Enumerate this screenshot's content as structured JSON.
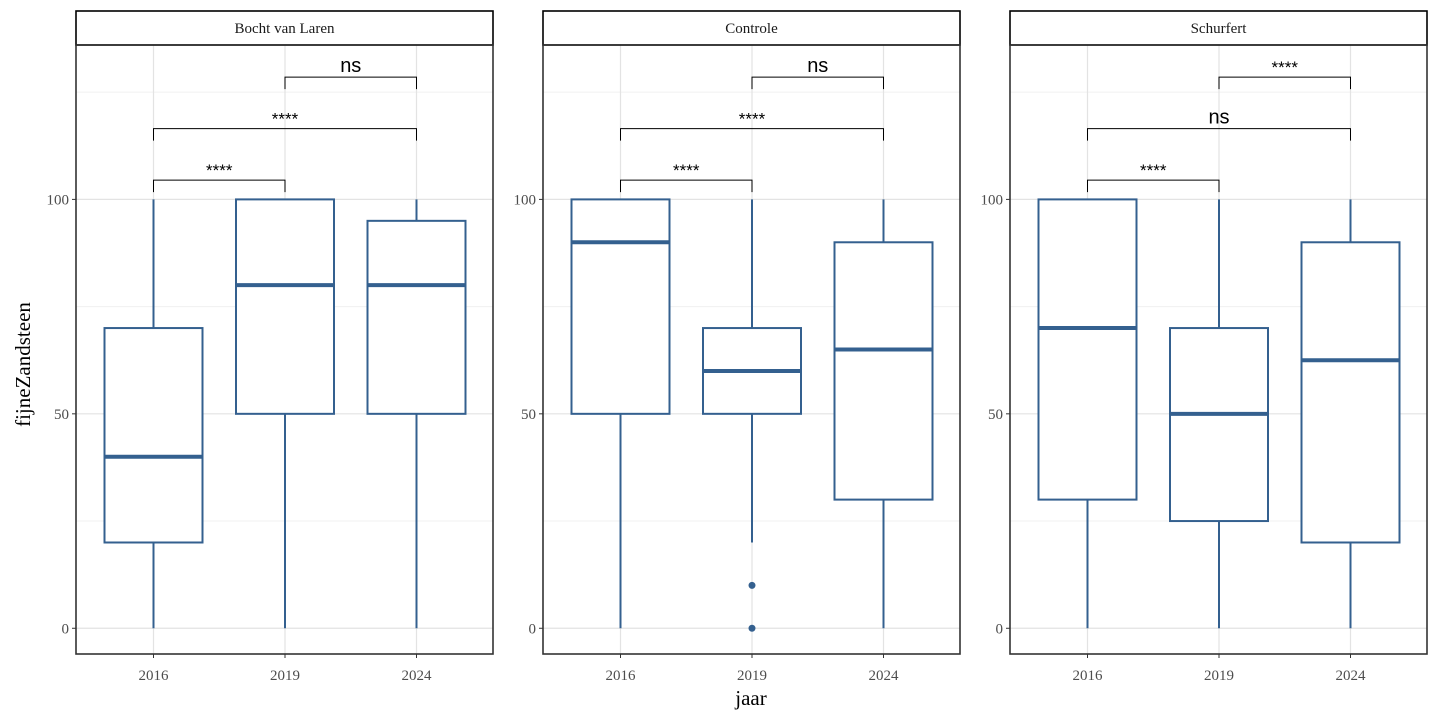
{
  "chart_data": {
    "type": "boxplot",
    "ylabel": "fijneZandsteen",
    "xlabel": "jaar",
    "categories": [
      "2016",
      "2019",
      "2024"
    ],
    "ylim": [
      -6,
      136
    ],
    "yticks": [
      0,
      50,
      100
    ],
    "grid": true,
    "box_color": "#34608f",
    "panels": [
      {
        "title": "Bocht van Laren",
        "boxes": [
          {
            "x": "2016",
            "min": 0,
            "q1": 20,
            "median": 40,
            "q3": 70,
            "max": 100,
            "outliers": []
          },
          {
            "x": "2019",
            "min": 0,
            "q1": 50,
            "median": 80,
            "q3": 100,
            "max": 100,
            "outliers": []
          },
          {
            "x": "2024",
            "min": 0,
            "q1": 50,
            "median": 80,
            "q3": 95,
            "max": 100,
            "outliers": []
          }
        ],
        "comparisons": [
          {
            "from": "2016",
            "to": "2019",
            "label": "****",
            "y": 104.5
          },
          {
            "from": "2016",
            "to": "2024",
            "label": "****",
            "y": 116.5
          },
          {
            "from": "2019",
            "to": "2024",
            "label": "ns",
            "y": 128.5
          }
        ]
      },
      {
        "title": "Controle",
        "boxes": [
          {
            "x": "2016",
            "min": 0,
            "q1": 50,
            "median": 90,
            "q3": 100,
            "max": 100,
            "outliers": []
          },
          {
            "x": "2019",
            "min": 20,
            "q1": 50,
            "median": 60,
            "q3": 70,
            "max": 100,
            "outliers": [
              10,
              0
            ]
          },
          {
            "x": "2024",
            "min": 0,
            "q1": 30,
            "median": 65,
            "q3": 90,
            "max": 100,
            "outliers": []
          }
        ],
        "comparisons": [
          {
            "from": "2016",
            "to": "2019",
            "label": "****",
            "y": 104.5
          },
          {
            "from": "2016",
            "to": "2024",
            "label": "****",
            "y": 116.5
          },
          {
            "from": "2019",
            "to": "2024",
            "label": "ns",
            "y": 128.5
          }
        ]
      },
      {
        "title": "Schurfert",
        "boxes": [
          {
            "x": "2016",
            "min": 0,
            "q1": 30,
            "median": 70,
            "q3": 100,
            "max": 100,
            "outliers": []
          },
          {
            "x": "2019",
            "min": 0,
            "q1": 25,
            "median": 50,
            "q3": 70,
            "max": 100,
            "outliers": []
          },
          {
            "x": "2024",
            "min": 0,
            "q1": 20,
            "median": 62.5,
            "q3": 90,
            "max": 100,
            "outliers": []
          }
        ],
        "comparisons": [
          {
            "from": "2016",
            "to": "2019",
            "label": "****",
            "y": 104.5
          },
          {
            "from": "2016",
            "to": "2024",
            "label": "ns",
            "y": 116.5
          },
          {
            "from": "2019",
            "to": "2024",
            "label": "****",
            "y": 128.5
          }
        ]
      }
    ]
  }
}
